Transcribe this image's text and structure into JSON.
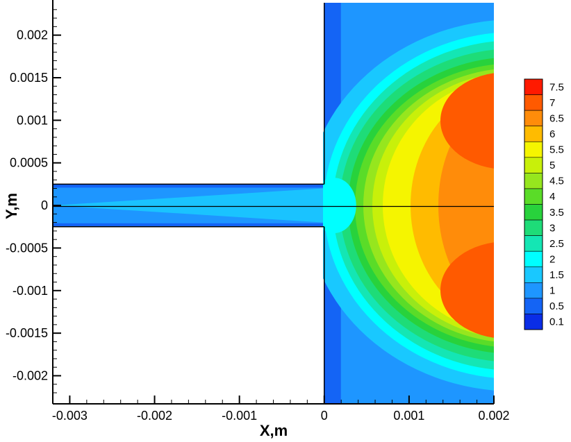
{
  "chart_data": {
    "type": "heatmap",
    "title": "",
    "xlabel": "X,m",
    "ylabel": "Y,m",
    "xlim": [
      -0.0032,
      0.002
    ],
    "ylim": [
      -0.00233,
      0.00238
    ],
    "x_ticks": [
      {
        "value": -0.003,
        "label": "-0.003"
      },
      {
        "value": -0.002,
        "label": "-0.002"
      },
      {
        "value": -0.001,
        "label": "-0.001"
      },
      {
        "value": 0,
        "label": "0"
      },
      {
        "value": 0.001,
        "label": "0.001"
      },
      {
        "value": 0.002,
        "label": "0.002"
      }
    ],
    "y_ticks": [
      {
        "value": 0.002,
        "label": "0.002"
      },
      {
        "value": 0.0015,
        "label": "0.0015"
      },
      {
        "value": 0.001,
        "label": "0.001"
      },
      {
        "value": 0.0005,
        "label": "0.0005"
      },
      {
        "value": 0,
        "label": "0"
      },
      {
        "value": -0.0005,
        "label": "-0.0005"
      },
      {
        "value": -0.001,
        "label": "-0.001"
      },
      {
        "value": -0.0015,
        "label": "-0.0015"
      },
      {
        "value": -0.002,
        "label": "-0.002"
      }
    ],
    "channel": {
      "x_start": -0.0032,
      "x_end": 0,
      "half_width": 0.00025
    },
    "legend": {
      "placement": "right",
      "levels": [
        {
          "label": "7.5",
          "color": "#ff1a00"
        },
        {
          "label": "7",
          "color": "#ff5a00"
        },
        {
          "label": "6.5",
          "color": "#ff8c0a"
        },
        {
          "label": "6",
          "color": "#ffbb00"
        },
        {
          "label": "5.5",
          "color": "#f5f500"
        },
        {
          "label": "5",
          "color": "#c8f00a"
        },
        {
          "label": "4.5",
          "color": "#96e61e"
        },
        {
          "label": "4",
          "color": "#5adc28"
        },
        {
          "label": "3.5",
          "color": "#28d23c"
        },
        {
          "label": "3",
          "color": "#1edc78"
        },
        {
          "label": "2.5",
          "color": "#14e6b4"
        },
        {
          "label": "2",
          "color": "#00ffff"
        },
        {
          "label": "1.5",
          "color": "#19c8ff"
        },
        {
          "label": "1",
          "color": "#1e96ff"
        },
        {
          "label": "0.5",
          "color": "#1464f5"
        },
        {
          "label": "0.1",
          "color": "#0a2de6"
        }
      ]
    }
  }
}
